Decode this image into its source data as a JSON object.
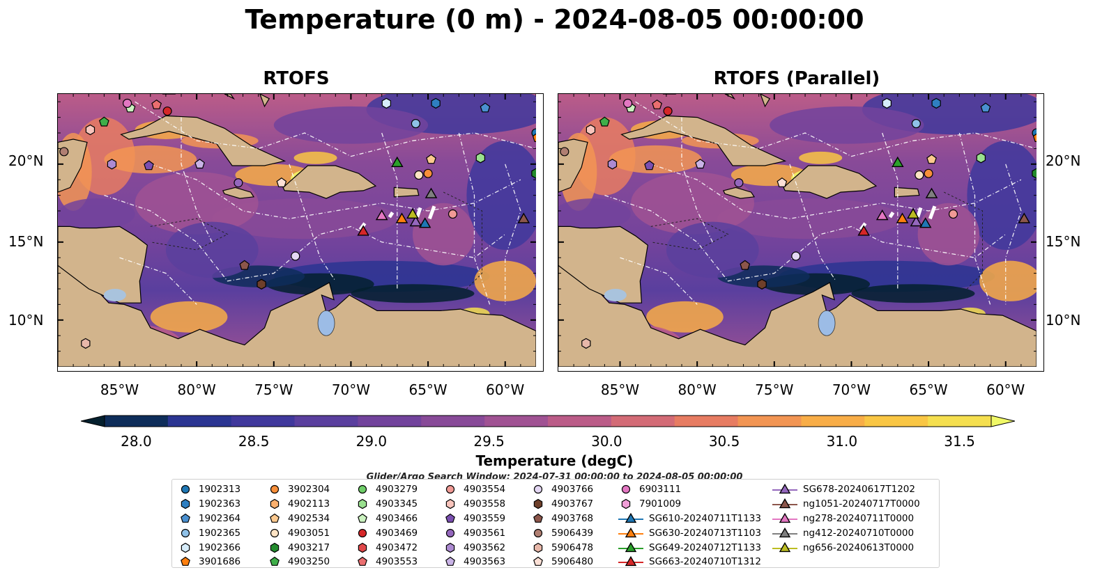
{
  "title": "Temperature (0 m) - 2024-08-05 00:00:00",
  "panels": [
    {
      "title": "RTOFS"
    },
    {
      "title": "RTOFS (Parallel)"
    }
  ],
  "map": {
    "lon_range": [
      -89,
      -58
    ],
    "lat_range": [
      7,
      24.5
    ],
    "lon_ticks": [
      "85°W",
      "80°W",
      "75°W",
      "70°W",
      "65°W",
      "60°W"
    ],
    "lat_ticks": [
      "20°N",
      "15°N",
      "10°N"
    ],
    "land_color": "#d2b48c"
  },
  "colorbar": {
    "label": "Temperature (degC)",
    "ticks": [
      "28.0",
      "28.5",
      "29.0",
      "29.5",
      "30.0",
      "30.5",
      "31.0",
      "31.5"
    ],
    "range": [
      28.0,
      31.5
    ],
    "colors": [
      "#04202e",
      "#0e2d5a",
      "#2b3592",
      "#40389c",
      "#5a3f9e",
      "#72439c",
      "#884a98",
      "#a05293",
      "#bb5c88",
      "#d36b76",
      "#e77c62",
      "#f29553",
      "#f8ad47",
      "#f9c644",
      "#f5df4f",
      "#f0f867"
    ]
  },
  "search_window": "Glider/Argo Search Window: 2024-07-31 00:00:00 to 2024-08-05 00:00:00",
  "legend": {
    "columns": [
      [
        {
          "label": "1902313",
          "marker": "circle",
          "color": "#1f77b4"
        },
        {
          "label": "1902363",
          "marker": "hexagon",
          "color": "#2f7fc1"
        },
        {
          "label": "1902364",
          "marker": "pentagon",
          "color": "#4a90d0"
        },
        {
          "label": "1902365",
          "marker": "circle",
          "color": "#8fc1e8"
        },
        {
          "label": "1902366",
          "marker": "hexagon",
          "color": "#d6ecfa"
        },
        {
          "label": "3901686",
          "marker": "pentagon",
          "color": "#ff7f0e"
        }
      ],
      [
        {
          "label": "3902304",
          "marker": "circle",
          "color": "#f88f3a"
        },
        {
          "label": "4902113",
          "marker": "hexagon",
          "color": "#fbb06e"
        },
        {
          "label": "4902534",
          "marker": "pentagon",
          "color": "#fcc98f"
        },
        {
          "label": "4903051",
          "marker": "circle",
          "color": "#fde3c4"
        },
        {
          "label": "4903217",
          "marker": "hexagon",
          "color": "#238b2e"
        },
        {
          "label": "4903250",
          "marker": "pentagon",
          "color": "#3fae49"
        }
      ],
      [
        {
          "label": "4903279",
          "marker": "circle",
          "color": "#6fce69"
        },
        {
          "label": "4903345",
          "marker": "hexagon",
          "color": "#9ae08f"
        },
        {
          "label": "4903466",
          "marker": "pentagon",
          "color": "#cbf2c0"
        },
        {
          "label": "4903469",
          "marker": "circle",
          "color": "#d62728"
        },
        {
          "label": "4903472",
          "marker": "hexagon",
          "color": "#e0484a"
        },
        {
          "label": "4903553",
          "marker": "pentagon",
          "color": "#ea6e6f"
        }
      ],
      [
        {
          "label": "4903554",
          "marker": "circle",
          "color": "#f09a95"
        },
        {
          "label": "4903558",
          "marker": "hexagon",
          "color": "#f8c4bc"
        },
        {
          "label": "4903559",
          "marker": "pentagon",
          "color": "#7a4fb0"
        },
        {
          "label": "4903561",
          "marker": "circle",
          "color": "#9467bd"
        },
        {
          "label": "4903562",
          "marker": "hexagon",
          "color": "#ac8ad1"
        },
        {
          "label": "4903563",
          "marker": "pentagon",
          "color": "#c9b3e6"
        }
      ],
      [
        {
          "label": "4903766",
          "marker": "circle",
          "color": "#e4d7f3"
        },
        {
          "label": "4903767",
          "marker": "hexagon",
          "color": "#6e3f2a"
        },
        {
          "label": "4903768",
          "marker": "pentagon",
          "color": "#8c564b"
        },
        {
          "label": "5906439",
          "marker": "circle",
          "color": "#b07f72"
        },
        {
          "label": "5906478",
          "marker": "hexagon",
          "color": "#e7b7a9"
        },
        {
          "label": "5906480",
          "marker": "pentagon",
          "color": "#fce0d6"
        }
      ],
      [
        {
          "label": "6903111",
          "marker": "circle",
          "color": "#e377c2"
        },
        {
          "label": "7901009",
          "marker": "hexagon",
          "color": "#f09ed7"
        },
        {
          "label": "SG610-20240711T1133",
          "marker": "triangle",
          "color": "#1f77b4"
        },
        {
          "label": "SG630-20240713T1103",
          "marker": "triangle",
          "color": "#ff7f0e"
        },
        {
          "label": "SG649-20240712T1133",
          "marker": "triangle",
          "color": "#2ca02c"
        },
        {
          "label": "SG663-20240710T1312",
          "marker": "triangle",
          "color": "#d62728"
        }
      ],
      [
        {
          "label": "SG678-20240617T1202",
          "marker": "triangle",
          "color": "#9467bd"
        },
        {
          "label": "ng1051-20240717T0000",
          "marker": "triangle",
          "color": "#8c564b"
        },
        {
          "label": "ng278-20240711T0000",
          "marker": "triangle",
          "color": "#e377c2"
        },
        {
          "label": "ng412-20240710T0000",
          "marker": "triangle",
          "color": "#7f7f7f"
        },
        {
          "label": "ng656-20240613T0000",
          "marker": "triangle",
          "color": "#bcbd22"
        }
      ]
    ]
  },
  "markers": [
    {
      "name": "1902313",
      "shape": "circle",
      "color": "#1f77b4",
      "lon": -58.0,
      "lat": 22.0
    },
    {
      "name": "1902364",
      "shape": "pentagon",
      "color": "#4a90d0",
      "lon": -61.3,
      "lat": 23.6
    },
    {
      "name": "1902365",
      "shape": "circle",
      "color": "#8fc1e8",
      "lon": -65.8,
      "lat": 22.6
    },
    {
      "name": "1902366",
      "shape": "hexagon",
      "color": "#d6ecfa",
      "lon": -67.7,
      "lat": 23.9
    },
    {
      "name": "1902363",
      "shape": "hexagon",
      "color": "#2f7fc1",
      "lon": -64.5,
      "lat": 23.9
    },
    {
      "name": "3901686",
      "shape": "pentagon",
      "color": "#ff7f0e",
      "lon": -57.9,
      "lat": 21.7
    },
    {
      "name": "3902304",
      "shape": "circle",
      "color": "#f88f3a",
      "lon": -65.0,
      "lat": 19.4
    },
    {
      "name": "4902534",
      "shape": "pentagon",
      "color": "#fcc98f",
      "lon": -64.8,
      "lat": 20.3
    },
    {
      "name": "4903051",
      "shape": "circle",
      "color": "#fde3c4",
      "lon": -65.6,
      "lat": 19.3
    },
    {
      "name": "4903217",
      "shape": "hexagon",
      "color": "#238b2e",
      "lon": -58.0,
      "lat": 19.4
    },
    {
      "name": "4903250",
      "shape": "pentagon",
      "color": "#3fae49",
      "lon": -86.0,
      "lat": 22.7
    },
    {
      "name": "4903345",
      "shape": "hexagon",
      "color": "#9ae08f",
      "lon": -61.6,
      "lat": 20.4
    },
    {
      "name": "4903466",
      "shape": "pentagon",
      "color": "#cbf2c0",
      "lon": -84.3,
      "lat": 23.6
    },
    {
      "name": "4903469",
      "shape": "circle",
      "color": "#d62728",
      "lon": -81.9,
      "lat": 23.4
    },
    {
      "name": "4903553",
      "shape": "pentagon",
      "color": "#ea6e6f",
      "lon": -82.6,
      "lat": 23.8
    },
    {
      "name": "4903554",
      "shape": "circle",
      "color": "#f09a95",
      "lon": -63.4,
      "lat": 16.8
    },
    {
      "name": "4903558",
      "shape": "hexagon",
      "color": "#f8c4bc",
      "lon": -86.9,
      "lat": 22.2
    },
    {
      "name": "4903559",
      "shape": "pentagon",
      "color": "#7a4fb0",
      "lon": -83.1,
      "lat": 19.9
    },
    {
      "name": "4903561",
      "shape": "circle",
      "color": "#9467bd",
      "lon": -77.3,
      "lat": 18.8
    },
    {
      "name": "4903562",
      "shape": "hexagon",
      "color": "#ac8ad1",
      "lon": -85.5,
      "lat": 20.0
    },
    {
      "name": "4903563",
      "shape": "pentagon",
      "color": "#c9b3e6",
      "lon": -79.8,
      "lat": 20.0
    },
    {
      "name": "4903766",
      "shape": "circle",
      "color": "#e4d7f3",
      "lon": -73.6,
      "lat": 14.1
    },
    {
      "name": "4903767",
      "shape": "hexagon",
      "color": "#6e3f2a",
      "lon": -75.8,
      "lat": 12.3
    },
    {
      "name": "4903768",
      "shape": "pentagon",
      "color": "#8c564b",
      "lon": -76.9,
      "lat": 13.5
    },
    {
      "name": "5906439",
      "shape": "circle",
      "color": "#b07f72",
      "lon": -88.6,
      "lat": 20.8
    },
    {
      "name": "5906478",
      "shape": "hexagon",
      "color": "#e7b7a9",
      "lon": -87.2,
      "lat": 8.5
    },
    {
      "name": "5906480",
      "shape": "pentagon",
      "color": "#fce0d6",
      "lon": -74.5,
      "lat": 18.8
    },
    {
      "name": "6903111",
      "shape": "circle",
      "color": "#e377c2",
      "lon": -84.5,
      "lat": 23.9
    },
    {
      "name": "SG610",
      "shape": "triangle",
      "color": "#1f77b4",
      "lon": -65.2,
      "lat": 16.2
    },
    {
      "name": "SG630",
      "shape": "triangle",
      "color": "#ff7f0e",
      "lon": -66.7,
      "lat": 16.5
    },
    {
      "name": "SG649",
      "shape": "triangle",
      "color": "#2ca02c",
      "lon": -67.0,
      "lat": 20.1
    },
    {
      "name": "SG663",
      "shape": "triangle",
      "color": "#d62728",
      "lon": -69.2,
      "lat": 15.7
    },
    {
      "name": "SG678",
      "shape": "triangle",
      "color": "#9467bd",
      "lon": -65.8,
      "lat": 16.3
    },
    {
      "name": "ng1051",
      "shape": "triangle",
      "color": "#8c564b",
      "lon": -58.8,
      "lat": 16.5
    },
    {
      "name": "ng278",
      "shape": "triangle",
      "color": "#e377c2",
      "lon": -68.0,
      "lat": 16.7
    },
    {
      "name": "ng412",
      "shape": "triangle",
      "color": "#7f7f7f",
      "lon": -64.8,
      "lat": 18.1
    },
    {
      "name": "ng656",
      "shape": "triangle",
      "color": "#bcbd22",
      "lon": -66.0,
      "lat": 16.8
    }
  ]
}
